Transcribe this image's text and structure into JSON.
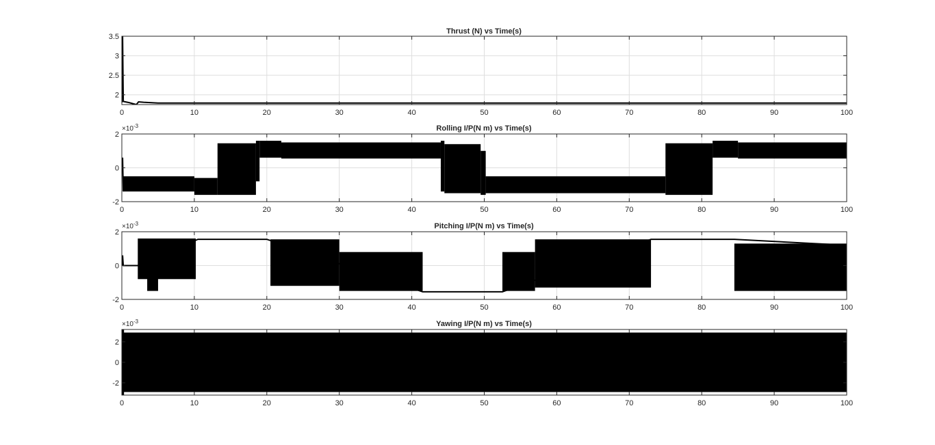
{
  "chart_data": [
    {
      "type": "line",
      "title": "Thrust (N) vs Time(s)",
      "exponent": "",
      "xlim": [
        0,
        100
      ],
      "ylim": [
        1.75,
        3.5
      ],
      "xticks": [
        0,
        10,
        20,
        30,
        40,
        50,
        60,
        70,
        80,
        90,
        100
      ],
      "yticks": [
        2,
        2.5,
        3,
        3.5
      ],
      "ytick_labels": [
        "2",
        "2.5",
        "3",
        "3.5"
      ],
      "grid": true,
      "series": [
        {
          "x": [
            0,
            0.05,
            0.1,
            0.2,
            1,
            2,
            2.3,
            3,
            5,
            10,
            20,
            40,
            60,
            80,
            100
          ],
          "y": [
            1.8,
            3.5,
            3.5,
            1.83,
            1.8,
            1.75,
            1.82,
            1.81,
            1.79,
            1.79,
            1.79,
            1.79,
            1.79,
            1.79,
            1.79
          ]
        }
      ],
      "bands": []
    },
    {
      "type": "line",
      "title": "Rolling I/P(N m) vs Time(s)",
      "exponent": "-3",
      "xlim": [
        0,
        100
      ],
      "ylim": [
        -2,
        2
      ],
      "xticks": [
        0,
        10,
        20,
        30,
        40,
        50,
        60,
        70,
        80,
        90,
        100
      ],
      "yticks": [
        -2,
        0,
        2
      ],
      "ytick_labels": [
        "-2",
        "0",
        "2"
      ],
      "grid": true,
      "series": [
        {
          "x": [
            0,
            0.1,
            0.2
          ],
          "y": [
            0,
            0.6,
            -1.4
          ]
        }
      ],
      "bands": [
        {
          "x": [
            0.2,
            10
          ],
          "y": [
            -1.4,
            -0.5
          ]
        },
        {
          "x": [
            10,
            13.2
          ],
          "y": [
            -1.6,
            -0.6
          ]
        },
        {
          "x": [
            13.2,
            18.5
          ],
          "y": [
            -1.6,
            1.45
          ]
        },
        {
          "x": [
            18.5,
            19
          ],
          "y": [
            -0.8,
            1.6
          ]
        },
        {
          "x": [
            19,
            22
          ],
          "y": [
            0.6,
            1.6
          ]
        },
        {
          "x": [
            22,
            44
          ],
          "y": [
            0.55,
            1.5
          ]
        },
        {
          "x": [
            44,
            44.5
          ],
          "y": [
            -1.4,
            1.6
          ]
        },
        {
          "x": [
            44.5,
            49.5
          ],
          "y": [
            -1.5,
            1.4
          ]
        },
        {
          "x": [
            49.5,
            50.2
          ],
          "y": [
            -1.6,
            1.0
          ]
        },
        {
          "x": [
            50.2,
            75
          ],
          "y": [
            -1.5,
            -0.5
          ]
        },
        {
          "x": [
            75,
            81.5
          ],
          "y": [
            -1.6,
            1.45
          ]
        },
        {
          "x": [
            81.5,
            85
          ],
          "y": [
            0.6,
            1.6
          ]
        },
        {
          "x": [
            85,
            100
          ],
          "y": [
            0.55,
            1.5
          ]
        }
      ]
    },
    {
      "type": "line",
      "title": "Pitching I/P(N m) vs Time(s)",
      "exponent": "-3",
      "xlim": [
        0,
        100
      ],
      "ylim": [
        -2,
        2
      ],
      "xticks": [
        0,
        10,
        20,
        30,
        40,
        50,
        60,
        70,
        80,
        90,
        100
      ],
      "yticks": [
        -2,
        0,
        2
      ],
      "ytick_labels": [
        "-2",
        "0",
        "2"
      ],
      "grid": true,
      "series": [
        {
          "x": [
            0,
            0.1,
            0.2,
            2.2,
            10.5,
            11,
            19.5,
            20,
            41.5,
            42,
            52,
            52.5,
            73,
            74.5,
            84,
            84.5,
            100
          ],
          "y": [
            0,
            0.6,
            0,
            0,
            1.55,
            1.55,
            1.55,
            1.55,
            -1.55,
            -1.55,
            -1.55,
            -1.55,
            1.55,
            1.55,
            1.55,
            1.55,
            1.2
          ]
        }
      ],
      "bands": [
        {
          "x": [
            2.2,
            10.2
          ],
          "y": [
            -0.8,
            1.6
          ]
        },
        {
          "x": [
            3.5,
            5
          ],
          "y": [
            -1.5,
            0
          ]
        },
        {
          "x": [
            20.5,
            30
          ],
          "y": [
            -1.2,
            1.55
          ]
        },
        {
          "x": [
            30,
            41.5
          ],
          "y": [
            -1.5,
            0.8
          ]
        },
        {
          "x": [
            52.5,
            57
          ],
          "y": [
            -1.5,
            0.8
          ]
        },
        {
          "x": [
            57,
            73
          ],
          "y": [
            -1.3,
            1.55
          ]
        },
        {
          "x": [
            84.5,
            100
          ],
          "y": [
            -1.5,
            1.3
          ]
        }
      ]
    },
    {
      "type": "area",
      "title": "Yawing I/P(N m) vs Time(s)",
      "exponent": "-3",
      "xlim": [
        0,
        100
      ],
      "ylim": [
        -3.2,
        3.2
      ],
      "xticks": [
        0,
        10,
        20,
        30,
        40,
        50,
        60,
        70,
        80,
        90,
        100
      ],
      "yticks": [
        -2,
        0,
        2
      ],
      "ytick_labels": [
        "-2",
        "0",
        "2"
      ],
      "grid": true,
      "series": [],
      "bands": [
        {
          "x": [
            0,
            100
          ],
          "y": [
            -2.9,
            2.9
          ]
        },
        {
          "x": [
            0,
            0.3
          ],
          "y": [
            -3.2,
            3.2
          ]
        }
      ]
    }
  ]
}
